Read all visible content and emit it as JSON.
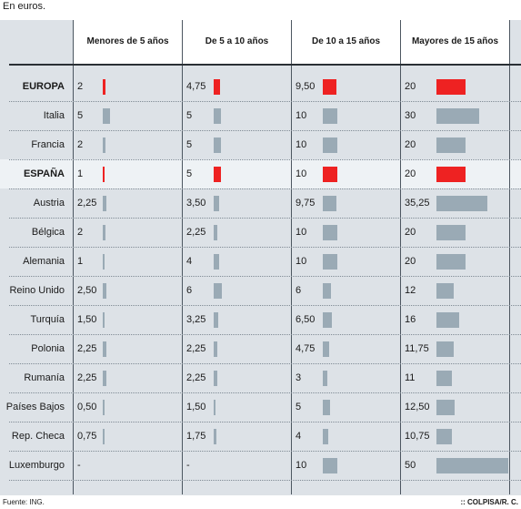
{
  "subtitle": "En euros.",
  "source": "Fuente: ING.",
  "credit": ":: COLPISA/R. C.",
  "colors": {
    "highlight_bar": "#ee2222",
    "bar": "#9aaab5"
  },
  "chart_data": {
    "type": "bar",
    "columns": [
      "Menores de 5 años",
      "De 5 a 10 años",
      "De 10 a 15 años",
      "Mayores de 15 años"
    ],
    "rows": [
      {
        "country": "EUROPA",
        "bold": true,
        "highlight": true,
        "labels": [
          "2",
          "4,75",
          "9,50",
          "20"
        ],
        "values": [
          2,
          4.75,
          9.5,
          20
        ]
      },
      {
        "country": "Italia",
        "labels": [
          "5",
          "5",
          "10",
          "30"
        ],
        "values": [
          5,
          5,
          10,
          30
        ]
      },
      {
        "country": "Francia",
        "labels": [
          "2",
          "5",
          "10",
          "20"
        ],
        "values": [
          2,
          5,
          10,
          20
        ]
      },
      {
        "country": "ESPAÑA",
        "bold": true,
        "highlight": true,
        "labels": [
          "1",
          "5",
          "10",
          "20"
        ],
        "values": [
          1,
          5,
          10,
          20
        ]
      },
      {
        "country": "Austria",
        "labels": [
          "2,25",
          "3,50",
          "9,75",
          "35,25"
        ],
        "values": [
          2.25,
          3.5,
          9.75,
          35.25
        ]
      },
      {
        "country": "Bélgica",
        "labels": [
          "2",
          "2,25",
          "10",
          "20"
        ],
        "values": [
          2,
          2.25,
          10,
          20
        ]
      },
      {
        "country": "Alemania",
        "labels": [
          "1",
          "4",
          "10",
          "20"
        ],
        "values": [
          1,
          4,
          10,
          20
        ]
      },
      {
        "country": "Reino Unido",
        "labels": [
          "2,50",
          "6",
          "6",
          "12"
        ],
        "values": [
          2.5,
          6,
          6,
          12
        ]
      },
      {
        "country": "Turquía",
        "labels": [
          "1,50",
          "3,25",
          "6,50",
          "16"
        ],
        "values": [
          1.5,
          3.25,
          6.5,
          16
        ]
      },
      {
        "country": "Polonia",
        "labels": [
          "2,25",
          "2,25",
          "4,75",
          "11,75"
        ],
        "values": [
          2.25,
          2.25,
          4.75,
          11.75
        ]
      },
      {
        "country": "Rumanía",
        "labels": [
          "2,25",
          "2,25",
          "3",
          "11"
        ],
        "values": [
          2.25,
          2.25,
          3,
          11
        ]
      },
      {
        "country": "Países Bajos",
        "labels": [
          "0,50",
          "1,50",
          "5",
          "12,50"
        ],
        "values": [
          0.5,
          1.5,
          5,
          12.5
        ]
      },
      {
        "country": "Rep. Checa",
        "labels": [
          "0,75",
          "1,75",
          "4",
          "10,75"
        ],
        "values": [
          0.75,
          1.75,
          4,
          10.75
        ]
      },
      {
        "country": "Luxemburgo",
        "labels": [
          "-",
          "-",
          "10",
          "50"
        ],
        "values": [
          null,
          null,
          10,
          50
        ]
      }
    ]
  }
}
